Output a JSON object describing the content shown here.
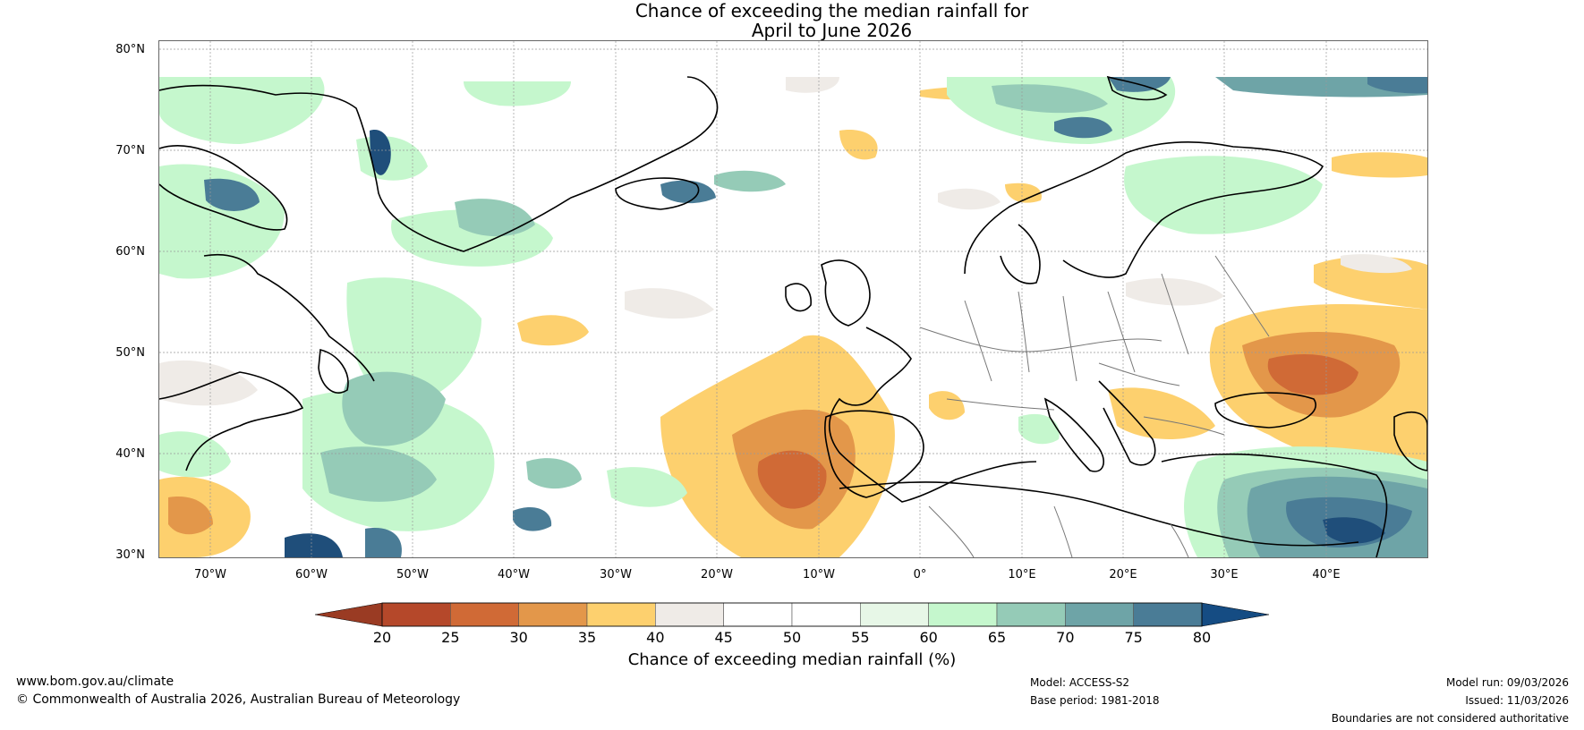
{
  "title_line1": "Chance of exceeding the median rainfall for",
  "title_line2": "April to June 2026",
  "lat_labels": [
    "80°N",
    "70°N",
    "60°N",
    "50°N",
    "40°N",
    "30°N"
  ],
  "lon_labels": [
    "70°W",
    "60°W",
    "50°W",
    "40°W",
    "30°W",
    "20°W",
    "10°W",
    "0°",
    "10°E",
    "20°E",
    "30°E",
    "40°E"
  ],
  "colorbar": {
    "label": "Chance of exceeding median rainfall (%)",
    "ticks": [
      "20",
      "25",
      "30",
      "35",
      "40",
      "45",
      "50",
      "55",
      "60",
      "65",
      "70",
      "75",
      "80"
    ],
    "colors": [
      "#b5482a",
      "#d06a36",
      "#e3974a",
      "#fdd06e",
      "#efebe7",
      "#ffffff",
      "#ffffff",
      "#e7f7e7",
      "#c5f7cd",
      "#95cbb7",
      "#6ea4a7",
      "#4a7c96",
      "#1f4e7a"
    ],
    "low_extend_color": "#9a3b23",
    "high_extend_color": "#154c83"
  },
  "footer": {
    "website": "www.bom.gov.au/climate",
    "copyright": "© Commonwealth of Australia 2026, Australian Bureau of Meteorology",
    "model": "Model: ACCESS-S2",
    "base_period": "Base period: 1981-2018",
    "model_run": "Model run: 09/03/2026",
    "issued": "Issued: 11/03/2026",
    "disclaimer": "Boundaries are not considered authoritative"
  }
}
